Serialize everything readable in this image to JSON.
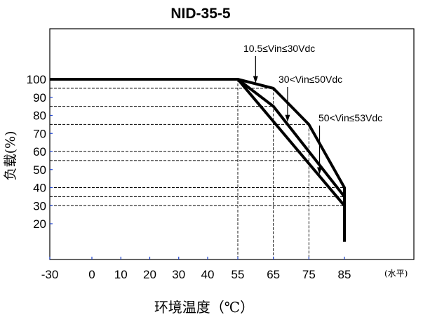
{
  "chart_data": {
    "type": "line",
    "title": "NID-35-5",
    "xlabel": "环境温度（℃）",
    "ylabel": "负载(%)",
    "x_unit": "(水平)",
    "xlim": [
      -30,
      85
    ],
    "ylim": [
      10,
      100
    ],
    "x_ticks": [
      "-30",
      "0",
      "10",
      "20",
      "30",
      "40",
      "55",
      "65",
      "75",
      "85"
    ],
    "y_ticks": [
      "100",
      "90",
      "80",
      "70",
      "60",
      "50",
      "40",
      "30",
      "20"
    ],
    "grid": "dashed reference lines",
    "series": [
      {
        "name": "10.5≤Vin≤30Vdc",
        "x": [
          -30,
          55,
          65,
          75,
          85,
          85
        ],
        "y": [
          100,
          100,
          95,
          75,
          40,
          10
        ]
      },
      {
        "name": "30<Vin≤50Vdc",
        "x": [
          -30,
          55,
          65,
          85
        ],
        "y": [
          100,
          100,
          85,
          35
        ]
      },
      {
        "name": "50<Vin≤53Vdc",
        "x": [
          -30,
          55,
          85
        ],
        "y": [
          100,
          100,
          30
        ]
      }
    ],
    "annotations": [
      {
        "text": "10.5≤Vin≤30Vdc",
        "points_to": [
          60,
          97.5
        ]
      },
      {
        "text": "30<Vin≤50Vdc",
        "points_to": [
          69,
          76
        ]
      },
      {
        "text": "50<Vin≤53Vdc",
        "points_to": [
          78,
          47
        ]
      }
    ],
    "reference_lines": {
      "horizontal": [
        {
          "y": 95,
          "x_end": 65
        },
        {
          "y": 85,
          "x_end": 65
        },
        {
          "y": 75,
          "x_end": 75
        },
        {
          "y": 60,
          "x_end": 75
        },
        {
          "y": 55,
          "x_end": 75
        },
        {
          "y": 40,
          "x_end": 85
        },
        {
          "y": 35,
          "x_end": 85
        },
        {
          "y": 30,
          "x_end": 85
        }
      ],
      "vertical": [
        {
          "x": 55,
          "y_top": 100
        },
        {
          "x": 65,
          "y_top": 95
        },
        {
          "x": 75,
          "y_top": 75
        }
      ]
    },
    "colors": {
      "line": "#000000",
      "axis_tick": "#1a3fcc"
    }
  }
}
